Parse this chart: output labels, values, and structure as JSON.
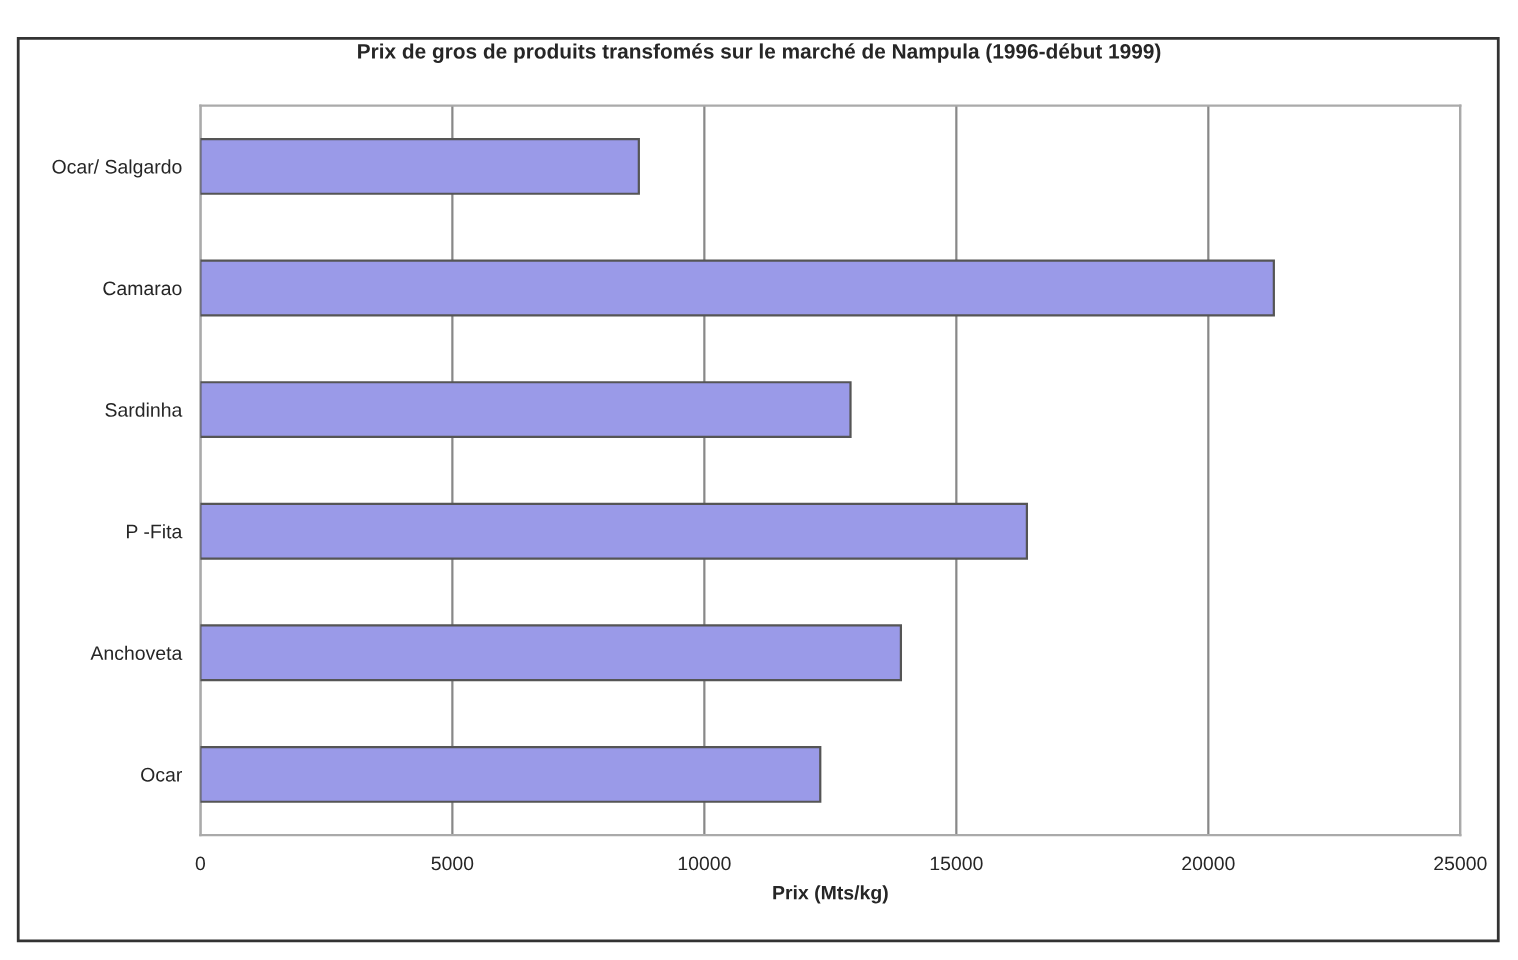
{
  "chart_data": {
    "type": "bar",
    "orientation": "horizontal",
    "title": "Prix de gros de produits transfomés sur le marché de Nampula (1996-début 1999)",
    "xlabel": "Prix (Mts/kg)",
    "categories": [
      "Ocar/ Salgardo",
      "Camarao",
      "Sardinha",
      "P -Fita",
      "Anchoveta",
      "Ocar"
    ],
    "values": [
      8700,
      21300,
      12900,
      16400,
      13900,
      12300
    ],
    "color": "#9a9ae8",
    "xlim": [
      0,
      25000
    ],
    "xticks": [
      0,
      5000,
      10000,
      15000,
      20000,
      25000
    ],
    "grid": "x"
  }
}
